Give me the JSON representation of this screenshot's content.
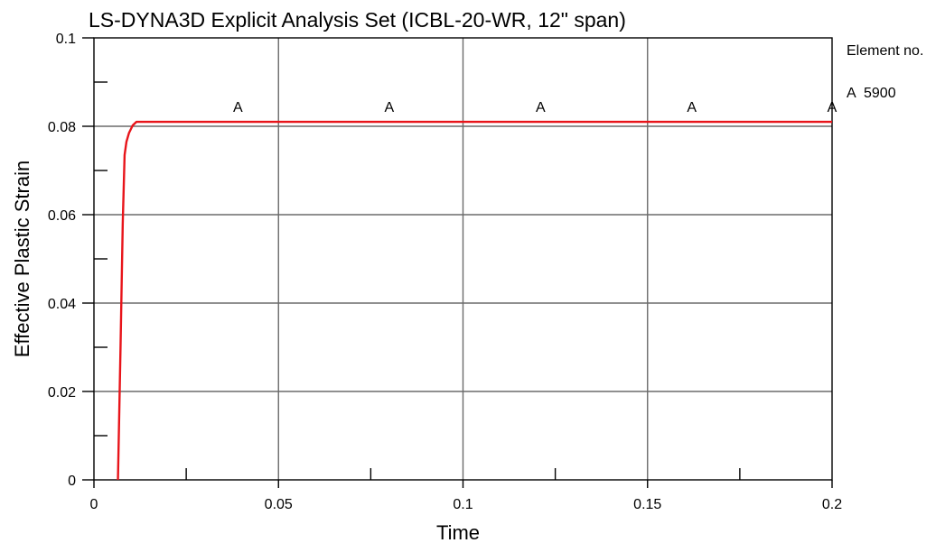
{
  "chart_data": {
    "type": "line",
    "title": "LS-DYNA3D Explicit Analysis Set (ICBL-20-WR, 12\" span)",
    "xlabel": "Time",
    "ylabel": "Effective Plastic Strain",
    "xlim": [
      0,
      0.2
    ],
    "ylim": [
      0,
      0.1
    ],
    "x_ticks": [
      0,
      0.05,
      0.1,
      0.15,
      0.2
    ],
    "x_tick_labels": [
      "0",
      "0.05",
      "0.1",
      "0.15",
      "0.2"
    ],
    "x_minor_ticks": [
      0.025,
      0.075,
      0.125,
      0.175
    ],
    "y_ticks": [
      0,
      0.02,
      0.04,
      0.06,
      0.08,
      0.1
    ],
    "y_tick_labels": [
      "0",
      "0.02",
      "0.04",
      "0.06",
      "0.08",
      "0.1"
    ],
    "y_minor_ticks": [
      0.01,
      0.03,
      0.05,
      0.07,
      0.09
    ],
    "grid": true,
    "legend": {
      "placement": "top-right",
      "title": "Element no.",
      "entries": [
        {
          "marker": "A",
          "label": "5900"
        }
      ]
    },
    "series": [
      {
        "marker": "A",
        "color": "#e8141a",
        "x": [
          0.0065,
          0.0072,
          0.0078,
          0.0083,
          0.0088,
          0.0095,
          0.0105,
          0.0115,
          0.03,
          0.05,
          0.1,
          0.15,
          0.2
        ],
        "y": [
          0.0,
          0.03,
          0.058,
          0.0735,
          0.0765,
          0.0785,
          0.0802,
          0.081,
          0.081,
          0.081,
          0.081,
          0.081,
          0.081
        ],
        "marker_x": [
          0.039,
          0.08,
          0.121,
          0.162,
          0.2
        ]
      }
    ]
  }
}
